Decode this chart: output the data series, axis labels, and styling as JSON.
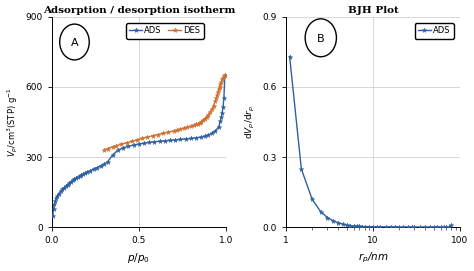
{
  "title_A": "Adsorption / desorption isotherm",
  "title_B": "BJH Plot",
  "xlabel_A": "$p/p_0$",
  "ylabel_A": "$V_p$/cm$^3$(STP) g$^{-1}$",
  "xlabel_B": "$r_p$/nm",
  "ylabel_B": "d$V_p$/d$r_p$",
  "ylim_A": [
    0,
    900
  ],
  "yticks_A": [
    0,
    300,
    600,
    900
  ],
  "xlim_A": [
    0,
    1.0
  ],
  "xticks_A": [
    0,
    0.5,
    1.0
  ],
  "ylim_B": [
    0,
    0.9
  ],
  "yticks_B": [
    0,
    0.3,
    0.6,
    0.9
  ],
  "xlim_B_log": [
    1,
    100
  ],
  "ads_color": "#3060a0",
  "des_color": "#d07030",
  "ads_x": [
    0.005,
    0.01,
    0.015,
    0.02,
    0.025,
    0.03,
    0.04,
    0.05,
    0.06,
    0.07,
    0.08,
    0.09,
    0.1,
    0.11,
    0.12,
    0.13,
    0.14,
    0.15,
    0.16,
    0.17,
    0.18,
    0.19,
    0.2,
    0.22,
    0.24,
    0.26,
    0.28,
    0.3,
    0.32,
    0.35,
    0.38,
    0.41,
    0.44,
    0.47,
    0.5,
    0.53,
    0.56,
    0.59,
    0.62,
    0.65,
    0.68,
    0.71,
    0.74,
    0.77,
    0.8,
    0.83,
    0.86,
    0.88,
    0.9,
    0.92,
    0.94,
    0.96,
    0.97,
    0.975,
    0.98,
    0.985,
    0.99,
    0.995
  ],
  "ads_y": [
    50,
    80,
    100,
    115,
    125,
    133,
    145,
    155,
    163,
    170,
    177,
    183,
    190,
    196,
    201,
    206,
    211,
    215,
    219,
    223,
    227,
    231,
    235,
    242,
    249,
    256,
    263,
    270,
    280,
    310,
    330,
    340,
    347,
    352,
    356,
    360,
    363,
    366,
    368,
    370,
    372,
    374,
    376,
    378,
    380,
    383,
    386,
    390,
    395,
    402,
    412,
    430,
    455,
    470,
    490,
    515,
    555,
    650
  ],
  "des_x": [
    0.995,
    0.99,
    0.985,
    0.98,
    0.975,
    0.97,
    0.965,
    0.96,
    0.955,
    0.95,
    0.945,
    0.94,
    0.93,
    0.92,
    0.91,
    0.9,
    0.89,
    0.88,
    0.87,
    0.86,
    0.85,
    0.84,
    0.83,
    0.82,
    0.8,
    0.78,
    0.76,
    0.74,
    0.72,
    0.7,
    0.67,
    0.64,
    0.61,
    0.58,
    0.55,
    0.52,
    0.49,
    0.46,
    0.43,
    0.4,
    0.37,
    0.35,
    0.32,
    0.3
  ],
  "des_y": [
    650,
    645,
    640,
    632,
    622,
    612,
    600,
    590,
    578,
    565,
    552,
    540,
    520,
    505,
    492,
    482,
    473,
    465,
    458,
    452,
    447,
    443,
    440,
    437,
    432,
    428,
    424,
    420,
    416,
    412,
    407,
    402,
    397,
    392,
    386,
    380,
    374,
    368,
    362,
    356,
    349,
    345,
    337,
    330
  ],
  "bjh_x": [
    1.1,
    1.5,
    2.0,
    2.5,
    3.0,
    3.5,
    4.0,
    4.5,
    5.0,
    5.5,
    6.0,
    6.5,
    7.0,
    7.5,
    8.0,
    9.0,
    10.0,
    11.0,
    12.0,
    14.0,
    16.0,
    18.0,
    20.0,
    22.0,
    25.0,
    28.0,
    30.0,
    35.0,
    40.0,
    45.0,
    50.0,
    55.0,
    60.0,
    65.0,
    70.0,
    75.0,
    80.0
  ],
  "bjh_y": [
    0.73,
    0.25,
    0.12,
    0.068,
    0.042,
    0.028,
    0.02,
    0.014,
    0.01,
    0.008,
    0.006,
    0.005,
    0.005,
    0.004,
    0.004,
    0.003,
    0.003,
    0.002,
    0.002,
    0.002,
    0.002,
    0.002,
    0.001,
    0.001,
    0.001,
    0.001,
    0.001,
    0.001,
    0.001,
    0.001,
    0.001,
    0.001,
    0.001,
    0.001,
    0.001,
    0.001,
    0.01
  ],
  "marker_size": 3.5,
  "line_width": 1.0,
  "background_color": "#ffffff",
  "grid_color": "#c8c8c8"
}
